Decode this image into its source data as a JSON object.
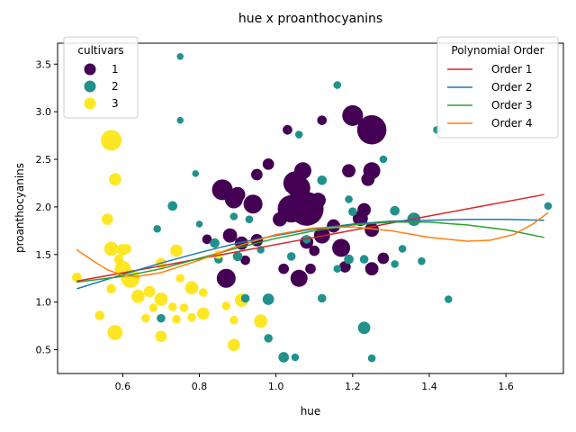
{
  "chart_data": {
    "type": "scatter",
    "title": "hue x proanthocyanins",
    "xlabel": "hue",
    "ylabel": "proanthocyanins",
    "xlim": [
      0.43,
      1.75
    ],
    "ylim": [
      0.25,
      3.72
    ],
    "xticks": [
      "0.6",
      "0.8",
      "1.0",
      "1.2",
      "1.4",
      "1.6"
    ],
    "yticks": [
      "0.5",
      "1.0",
      "1.5",
      "2.0",
      "2.5",
      "3.0",
      "3.5"
    ],
    "grid": false,
    "colors": {
      "1": "#440154",
      "2": "#21918c",
      "3": "#fde725"
    },
    "legend_cultivars": {
      "title": "cultivars",
      "placement": "top-left",
      "items": [
        {
          "label": "1",
          "color": "#440154"
        },
        {
          "label": "2",
          "color": "#21918c"
        },
        {
          "label": "3",
          "color": "#fde725"
        }
      ]
    },
    "legend_poly": {
      "title": "Polynomial Order",
      "placement": "top-right",
      "items": [
        {
          "label": "Order 1",
          "color": "#d62728"
        },
        {
          "label": "Order 2",
          "color": "#1f77b4"
        },
        {
          "label": "Order 3",
          "color": "#2ca02c"
        },
        {
          "label": "Order 4",
          "color": "#ff7f0e"
        }
      ]
    },
    "fit_lines": [
      {
        "name": "Order 1",
        "color": "#d62728",
        "points": [
          [
            0.48,
            1.22
          ],
          [
            0.7,
            1.38
          ],
          [
            0.9,
            1.53
          ],
          [
            1.1,
            1.68
          ],
          [
            1.3,
            1.83
          ],
          [
            1.5,
            1.98
          ],
          [
            1.7,
            2.13
          ]
        ]
      },
      {
        "name": "Order 2",
        "color": "#1f77b4",
        "points": [
          [
            0.48,
            1.14
          ],
          [
            0.6,
            1.29
          ],
          [
            0.7,
            1.41
          ],
          [
            0.8,
            1.52
          ],
          [
            0.9,
            1.62
          ],
          [
            1.0,
            1.7
          ],
          [
            1.1,
            1.77
          ],
          [
            1.2,
            1.82
          ],
          [
            1.3,
            1.85
          ],
          [
            1.4,
            1.86
          ],
          [
            1.5,
            1.87
          ],
          [
            1.6,
            1.87
          ],
          [
            1.7,
            1.86
          ]
        ]
      },
      {
        "name": "Order 3",
        "color": "#2ca02c",
        "points": [
          [
            0.48,
            1.21
          ],
          [
            0.6,
            1.27
          ],
          [
            0.7,
            1.35
          ],
          [
            0.8,
            1.46
          ],
          [
            0.9,
            1.57
          ],
          [
            1.0,
            1.67
          ],
          [
            1.1,
            1.75
          ],
          [
            1.2,
            1.81
          ],
          [
            1.3,
            1.84
          ],
          [
            1.4,
            1.84
          ],
          [
            1.5,
            1.81
          ],
          [
            1.6,
            1.76
          ],
          [
            1.7,
            1.68
          ]
        ]
      },
      {
        "name": "Order 4",
        "color": "#ff7f0e",
        "points": [
          [
            0.48,
            1.55
          ],
          [
            0.52,
            1.44
          ],
          [
            0.56,
            1.34
          ],
          [
            0.6,
            1.28
          ],
          [
            0.64,
            1.27
          ],
          [
            0.7,
            1.31
          ],
          [
            0.8,
            1.44
          ],
          [
            0.9,
            1.59
          ],
          [
            1.0,
            1.71
          ],
          [
            1.1,
            1.78
          ],
          [
            1.2,
            1.79
          ],
          [
            1.3,
            1.75
          ],
          [
            1.4,
            1.68
          ],
          [
            1.5,
            1.64
          ],
          [
            1.56,
            1.65
          ],
          [
            1.62,
            1.71
          ],
          [
            1.67,
            1.82
          ],
          [
            1.71,
            1.94
          ]
        ]
      }
    ],
    "points": [
      [
        1.04,
        1.98,
        1,
        2.5
      ],
      [
        1.05,
        2.25,
        1,
        2.1
      ],
      [
        1.06,
        2.2,
        1,
        2.0
      ],
      [
        1.08,
        1.98,
        1,
        3.2
      ],
      [
        1.09,
        2.05,
        1,
        1.5
      ],
      [
        1.11,
        2.07,
        1,
        1.2
      ],
      [
        1.12,
        1.7,
        1,
        1.3
      ],
      [
        1.15,
        1.8,
        1,
        1.0
      ],
      [
        1.17,
        1.57,
        1,
        1.5
      ],
      [
        1.18,
        1.37,
        1,
        0.8
      ],
      [
        1.19,
        2.38,
        1,
        1.0
      ],
      [
        1.2,
        2.96,
        1,
        1.8
      ],
      [
        1.22,
        1.88,
        1,
        1.2
      ],
      [
        1.23,
        1.97,
        1,
        1.0
      ],
      [
        1.24,
        2.29,
        1,
        1.0
      ],
      [
        1.25,
        2.81,
        1,
        2.7
      ],
      [
        1.25,
        2.38,
        1,
        1.4
      ],
      [
        1.25,
        1.76,
        1,
        1.1
      ],
      [
        1.25,
        1.35,
        1,
        1.0
      ],
      [
        1.28,
        1.46,
        1,
        0.8
      ],
      [
        0.86,
        2.18,
        1,
        1.8
      ],
      [
        0.89,
        2.08,
        1,
        1.5
      ],
      [
        0.9,
        2.13,
        1,
        1.2
      ],
      [
        0.94,
        2.03,
        1,
        1.6
      ],
      [
        0.95,
        2.34,
        1,
        0.8
      ],
      [
        0.98,
        2.45,
        1,
        0.8
      ],
      [
        0.88,
        1.7,
        1,
        1.1
      ],
      [
        0.91,
        1.62,
        1,
        1.0
      ],
      [
        0.95,
        1.65,
        1,
        0.9
      ],
      [
        0.87,
        1.25,
        1,
        1.6
      ],
      [
        1.01,
        1.87,
        1,
        1.1
      ],
      [
        1.06,
        1.25,
        1,
        1.4
      ],
      [
        1.07,
        2.38,
        1,
        1.4
      ],
      [
        1.08,
        1.63,
        1,
        1.0
      ],
      [
        1.1,
        1.54,
        1,
        0.7
      ],
      [
        1.12,
        2.91,
        1,
        0.6
      ],
      [
        1.03,
        2.81,
        1,
        0.6
      ],
      [
        1.02,
        1.35,
        1,
        0.7
      ],
      [
        0.82,
        1.66,
        1,
        0.6
      ],
      [
        0.92,
        1.44,
        1,
        0.6
      ],
      [
        1.09,
        1.35,
        1,
        0.7
      ],
      [
        1.16,
        3.28,
        2,
        0.4
      ],
      [
        0.75,
        3.58,
        2,
        0.3
      ],
      [
        0.75,
        2.91,
        2,
        0.3
      ],
      [
        1.42,
        2.81,
        2,
        0.4
      ],
      [
        1.06,
        2.76,
        2,
        0.4
      ],
      [
        1.28,
        2.5,
        2,
        0.4
      ],
      [
        1.12,
        2.28,
        2,
        0.6
      ],
      [
        0.79,
        2.35,
        2,
        0.3
      ],
      [
        0.73,
        2.01,
        2,
        0.6
      ],
      [
        1.19,
        2.08,
        2,
        0.4
      ],
      [
        1.31,
        1.96,
        2,
        0.6
      ],
      [
        1.36,
        1.87,
        2,
        1.0
      ],
      [
        1.71,
        2.01,
        2,
        0.4
      ],
      [
        0.89,
        1.9,
        2,
        0.4
      ],
      [
        0.84,
        1.62,
        2,
        0.6
      ],
      [
        0.69,
        1.77,
        2,
        0.4
      ],
      [
        0.93,
        1.87,
        2,
        0.4
      ],
      [
        1.2,
        1.95,
        2,
        0.5
      ],
      [
        1.23,
        1.45,
        2,
        0.5
      ],
      [
        1.33,
        1.56,
        2,
        0.4
      ],
      [
        1.38,
        1.43,
        2,
        0.4
      ],
      [
        1.23,
        0.73,
        2,
        0.9
      ],
      [
        0.98,
        1.03,
        2,
        0.8
      ],
      [
        1.02,
        0.42,
        2,
        0.7
      ],
      [
        1.25,
        0.41,
        2,
        0.4
      ],
      [
        1.45,
        1.03,
        2,
        0.4
      ],
      [
        0.98,
        0.62,
        2,
        0.5
      ],
      [
        1.05,
        0.42,
        2,
        0.4
      ],
      [
        0.7,
        0.83,
        2,
        0.5
      ],
      [
        0.8,
        1.82,
        2,
        0.3
      ],
      [
        0.9,
        1.48,
        2,
        0.6
      ],
      [
        0.96,
        1.55,
        2,
        0.4
      ],
      [
        1.04,
        1.48,
        2,
        0.5
      ],
      [
        1.12,
        1.04,
        2,
        0.5
      ],
      [
        1.16,
        1.35,
        2,
        0.4
      ],
      [
        1.31,
        1.4,
        2,
        0.4
      ],
      [
        0.92,
        1.04,
        2,
        0.5
      ],
      [
        1.08,
        1.66,
        2,
        0.5
      ],
      [
        1.19,
        1.45,
        2,
        0.6
      ],
      [
        0.85,
        1.45,
        2,
        0.5
      ],
      [
        0.57,
        2.7,
        3,
        1.8
      ],
      [
        0.58,
        2.29,
        3,
        0.9
      ],
      [
        0.56,
        1.87,
        3,
        0.8
      ],
      [
        0.57,
        1.56,
        3,
        1.1
      ],
      [
        0.6,
        1.55,
        3,
        0.8
      ],
      [
        0.62,
        1.25,
        3,
        1.6
      ],
      [
        0.6,
        1.35,
        3,
        1.3
      ],
      [
        0.58,
        0.68,
        3,
        1.2
      ],
      [
        0.64,
        1.06,
        3,
        1.0
      ],
      [
        0.7,
        1.03,
        3,
        1.0
      ],
      [
        0.78,
        1.15,
        3,
        1.0
      ],
      [
        0.74,
        1.54,
        3,
        0.9
      ],
      [
        0.81,
        0.88,
        3,
        0.9
      ],
      [
        0.89,
        0.55,
        3,
        0.9
      ],
      [
        0.96,
        0.8,
        3,
        1.0
      ],
      [
        0.91,
        1.02,
        3,
        1.0
      ],
      [
        0.7,
        0.64,
        3,
        0.8
      ],
      [
        0.67,
        1.11,
        3,
        0.8
      ],
      [
        0.54,
        0.86,
        3,
        0.6
      ],
      [
        0.48,
        1.26,
        3,
        0.6
      ],
      [
        0.59,
        1.45,
        3,
        0.6
      ],
      [
        0.7,
        1.41,
        3,
        0.7
      ],
      [
        0.73,
        0.95,
        3,
        0.5
      ],
      [
        0.76,
        0.94,
        3,
        0.5
      ],
      [
        0.85,
        1.5,
        3,
        0.5
      ],
      [
        0.87,
        0.96,
        3,
        0.5
      ],
      [
        0.78,
        0.84,
        3,
        0.5
      ],
      [
        0.66,
        0.83,
        3,
        0.5
      ],
      [
        0.74,
        0.82,
        3,
        0.5
      ],
      [
        0.81,
        1.1,
        3,
        0.5
      ],
      [
        0.68,
        0.94,
        3,
        0.5
      ],
      [
        0.75,
        1.25,
        3,
        0.5
      ],
      [
        0.57,
        1.14,
        3,
        0.6
      ],
      [
        0.61,
        1.56,
        3,
        0.6
      ],
      [
        0.89,
        0.81,
        3,
        0.5
      ]
    ]
  }
}
